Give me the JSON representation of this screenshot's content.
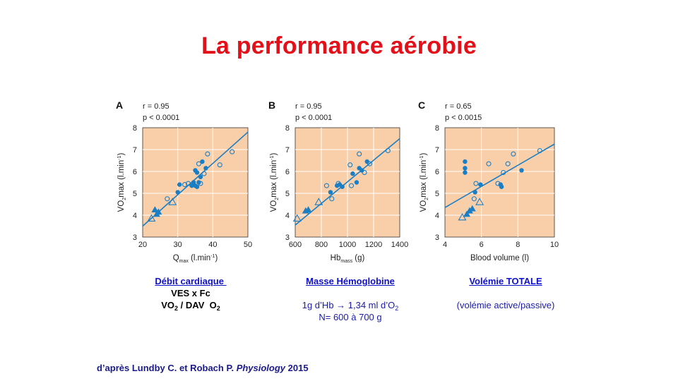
{
  "title": "La performance aérobie",
  "colors": {
    "title": "#e3101a",
    "plot_bg": "#f9cfaa",
    "marker": "#1a7ec5",
    "caption_link": "#1010c8"
  },
  "chart_data": [
    {
      "type": "scatter",
      "panel": "A",
      "stats": [
        "r = 0.95",
        "p < 0.0001"
      ],
      "xlabel": "Q",
      "xlabel_sub": "max",
      "xlabel_unit": " (l.min",
      "ylabel": "VO",
      "ylabel_sub": "2",
      "ylabel_rest": "max (l.min",
      "xlim": [
        20,
        50
      ],
      "ylim": [
        3,
        8
      ],
      "xticks": [
        20,
        30,
        40,
        50
      ],
      "yticks": [
        3,
        4,
        5,
        6,
        7,
        8
      ],
      "fit": [
        [
          20,
          3.5
        ],
        [
          50,
          7.8
        ]
      ],
      "series": [
        {
          "marker": "filled-circle",
          "points": [
            [
              30,
              5.05
            ],
            [
              30.5,
              5.4
            ],
            [
              34,
              5.35
            ],
            [
              34.5,
              5.5
            ],
            [
              35,
              5.35
            ],
            [
              35,
              6.05
            ],
            [
              35.5,
              5.95
            ],
            [
              35.5,
              5.3
            ],
            [
              36,
              5.5
            ],
            [
              36.5,
              5.75
            ],
            [
              37,
              6.45
            ],
            [
              38,
              6.15
            ]
          ]
        },
        {
          "marker": "open-circle",
          "points": [
            [
              27,
              4.75
            ],
            [
              32,
              5.4
            ],
            [
              33,
              5.45
            ],
            [
              36,
              6.35
            ],
            [
              36.5,
              5.45
            ],
            [
              37.5,
              5.9
            ],
            [
              38.5,
              6.8
            ],
            [
              42,
              6.3
            ],
            [
              45.5,
              6.9
            ]
          ]
        },
        {
          "marker": "filled-triangle",
          "points": [
            [
              23.5,
              4.25
            ],
            [
              24,
              4.05
            ],
            [
              24.5,
              4.15
            ]
          ]
        },
        {
          "marker": "open-triangle",
          "points": [
            [
              22.5,
              3.85
            ],
            [
              28.5,
              4.6
            ]
          ]
        }
      ]
    },
    {
      "type": "scatter",
      "panel": "B",
      "stats": [
        "r = 0.95",
        "p < 0.0001"
      ],
      "xlabel": "Hb",
      "xlabel_sub": "mass",
      "xlabel_unit": " (g)",
      "ylabel": "VO",
      "ylabel_sub": "2",
      "ylabel_rest": "max (l.min",
      "xlim": [
        600,
        1400
      ],
      "ylim": [
        3,
        8
      ],
      "xticks": [
        600,
        800,
        1000,
        1200,
        1400
      ],
      "yticks": [
        3,
        4,
        5,
        6,
        7,
        8
      ],
      "fit": [
        [
          600,
          3.55
        ],
        [
          1400,
          7.5
        ]
      ],
      "series": [
        {
          "marker": "filled-circle",
          "points": [
            [
              870,
              5.05
            ],
            [
              920,
              5.35
            ],
            [
              940,
              5.4
            ],
            [
              960,
              5.3
            ],
            [
              1040,
              5.9
            ],
            [
              1070,
              5.5
            ],
            [
              1090,
              6.15
            ],
            [
              1110,
              6.05
            ],
            [
              1150,
              6.45
            ]
          ]
        },
        {
          "marker": "open-circle",
          "points": [
            [
              840,
              5.35
            ],
            [
              880,
              4.75
            ],
            [
              930,
              5.45
            ],
            [
              1020,
              6.3
            ],
            [
              1030,
              5.35
            ],
            [
              1090,
              6.8
            ],
            [
              1130,
              5.95
            ],
            [
              1170,
              6.35
            ],
            [
              1310,
              6.95
            ]
          ]
        },
        {
          "marker": "filled-triangle",
          "points": [
            [
              680,
              4.2
            ],
            [
              700,
              4.25
            ]
          ]
        },
        {
          "marker": "open-triangle",
          "points": [
            [
              615,
              3.85
            ],
            [
              780,
              4.6
            ]
          ]
        }
      ]
    },
    {
      "type": "scatter",
      "panel": "C",
      "stats": [
        "r = 0.65",
        "p < 0.0015"
      ],
      "xlabel": "Blood volume (l)",
      "xlabel_sub": "",
      "xlabel_unit": "",
      "ylabel": "VO",
      "ylabel_sub": "2",
      "ylabel_rest": "max (l.min",
      "xlim": [
        4,
        10
      ],
      "ylim": [
        3,
        8
      ],
      "xticks": [
        4,
        6,
        8,
        10
      ],
      "yticks": [
        3,
        4,
        5,
        6,
        7,
        8
      ],
      "fit": [
        [
          4,
          4.35
        ],
        [
          10,
          7.25
        ]
      ],
      "series": [
        {
          "marker": "filled-circle",
          "points": [
            [
              5.1,
              6.45
            ],
            [
              5.1,
              6.15
            ],
            [
              5.1,
              5.95
            ],
            [
              5.65,
              5.05
            ],
            [
              5.95,
              5.4
            ],
            [
              7.05,
              5.4
            ],
            [
              7.1,
              5.3
            ],
            [
              8.2,
              6.05
            ]
          ]
        },
        {
          "marker": "open-circle",
          "points": [
            [
              5.7,
              5.45
            ],
            [
              6.4,
              6.35
            ],
            [
              6.9,
              5.45
            ],
            [
              7.2,
              5.95
            ],
            [
              7.45,
              6.35
            ],
            [
              7.75,
              6.8
            ],
            [
              9.2,
              6.95
            ],
            [
              5.6,
              4.75
            ]
          ]
        },
        {
          "marker": "filled-triangle",
          "points": [
            [
              5.2,
              4.05
            ],
            [
              5.35,
              4.2
            ],
            [
              5.5,
              4.3
            ]
          ]
        },
        {
          "marker": "open-triangle",
          "points": [
            [
              4.95,
              3.9
            ],
            [
              5.9,
              4.6
            ]
          ]
        }
      ]
    }
  ],
  "captions": [
    {
      "heading": "Débit cardiaque ",
      "line1": "VES x Fc",
      "line2a": "VO",
      "line2sub": "2",
      "line2b": " / DAV  O",
      "line2sub2": "2"
    },
    {
      "heading": "Masse Hémoglobine",
      "line1a": "1g d’Hb ",
      "arrow": "→",
      "line1b": " 1,34 ml d’O",
      "line1sub": "2",
      "line2": "N= 600 à 700 g"
    },
    {
      "heading": "Volémie TOTALE",
      "line1": "(volémie active/passive)"
    }
  ],
  "reference": {
    "prefix": "d’après Lundby C. et Robach P. ",
    "journal": "Physiology",
    "year": " 2015"
  }
}
